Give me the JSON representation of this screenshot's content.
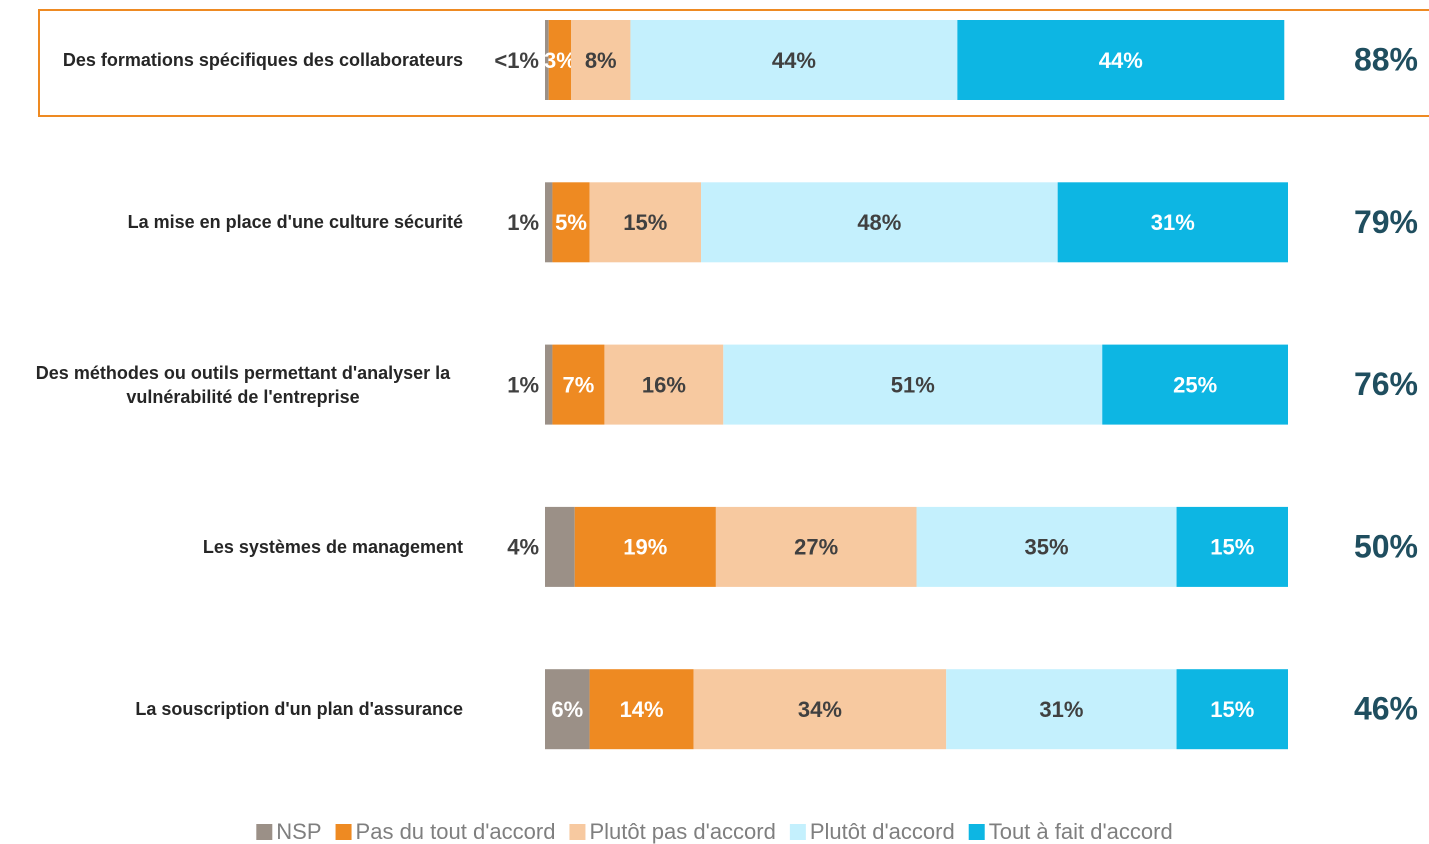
{
  "chart_data": {
    "type": "stacked-bar-horizontal",
    "categories": [
      "Des formations spécifiques des collaborateurs",
      "La mise en place d'une culture sécurité",
      "Des méthodes ou outils permettant d'analyser la vulnérabilité de l'entreprise",
      "Les systèmes de management",
      "La souscription d'un plan d'assurance"
    ],
    "series": [
      {
        "name": "NSP",
        "color": "#9b9087",
        "values": [
          0.5,
          1,
          1,
          4,
          6
        ],
        "value_labels": [
          "<1%",
          "1%",
          "1%",
          "4%",
          "6%"
        ]
      },
      {
        "name": "Pas du tout d'accord",
        "color": "#ee8a22",
        "values": [
          3,
          5,
          7,
          19,
          14
        ],
        "value_labels": [
          "3%",
          "5%",
          "7%",
          "19%",
          "14%"
        ]
      },
      {
        "name": "Plutôt pas d'accord",
        "color": "#f7c9a0",
        "values": [
          8,
          15,
          16,
          27,
          34
        ],
        "value_labels": [
          "8%",
          "15%",
          "16%",
          "27%",
          "34%"
        ]
      },
      {
        "name": "Plutôt d'accord",
        "color": "#c4f0fd",
        "values": [
          44,
          48,
          51,
          35,
          31
        ],
        "value_labels": [
          "44%",
          "48%",
          "51%",
          "35%",
          "31%"
        ]
      },
      {
        "name": "Tout à fait d'accord",
        "color": "#0db6e3",
        "values": [
          44,
          31,
          25,
          15,
          15
        ],
        "value_labels": [
          "44%",
          "31%",
          "25%",
          "15%",
          "15%"
        ]
      }
    ],
    "totals": {
      "values": [
        88,
        79,
        76,
        50,
        46
      ],
      "value_labels": [
        "88%",
        "79%",
        "76%",
        "50%",
        "46%"
      ]
    },
    "legend": "bottom"
  }
}
